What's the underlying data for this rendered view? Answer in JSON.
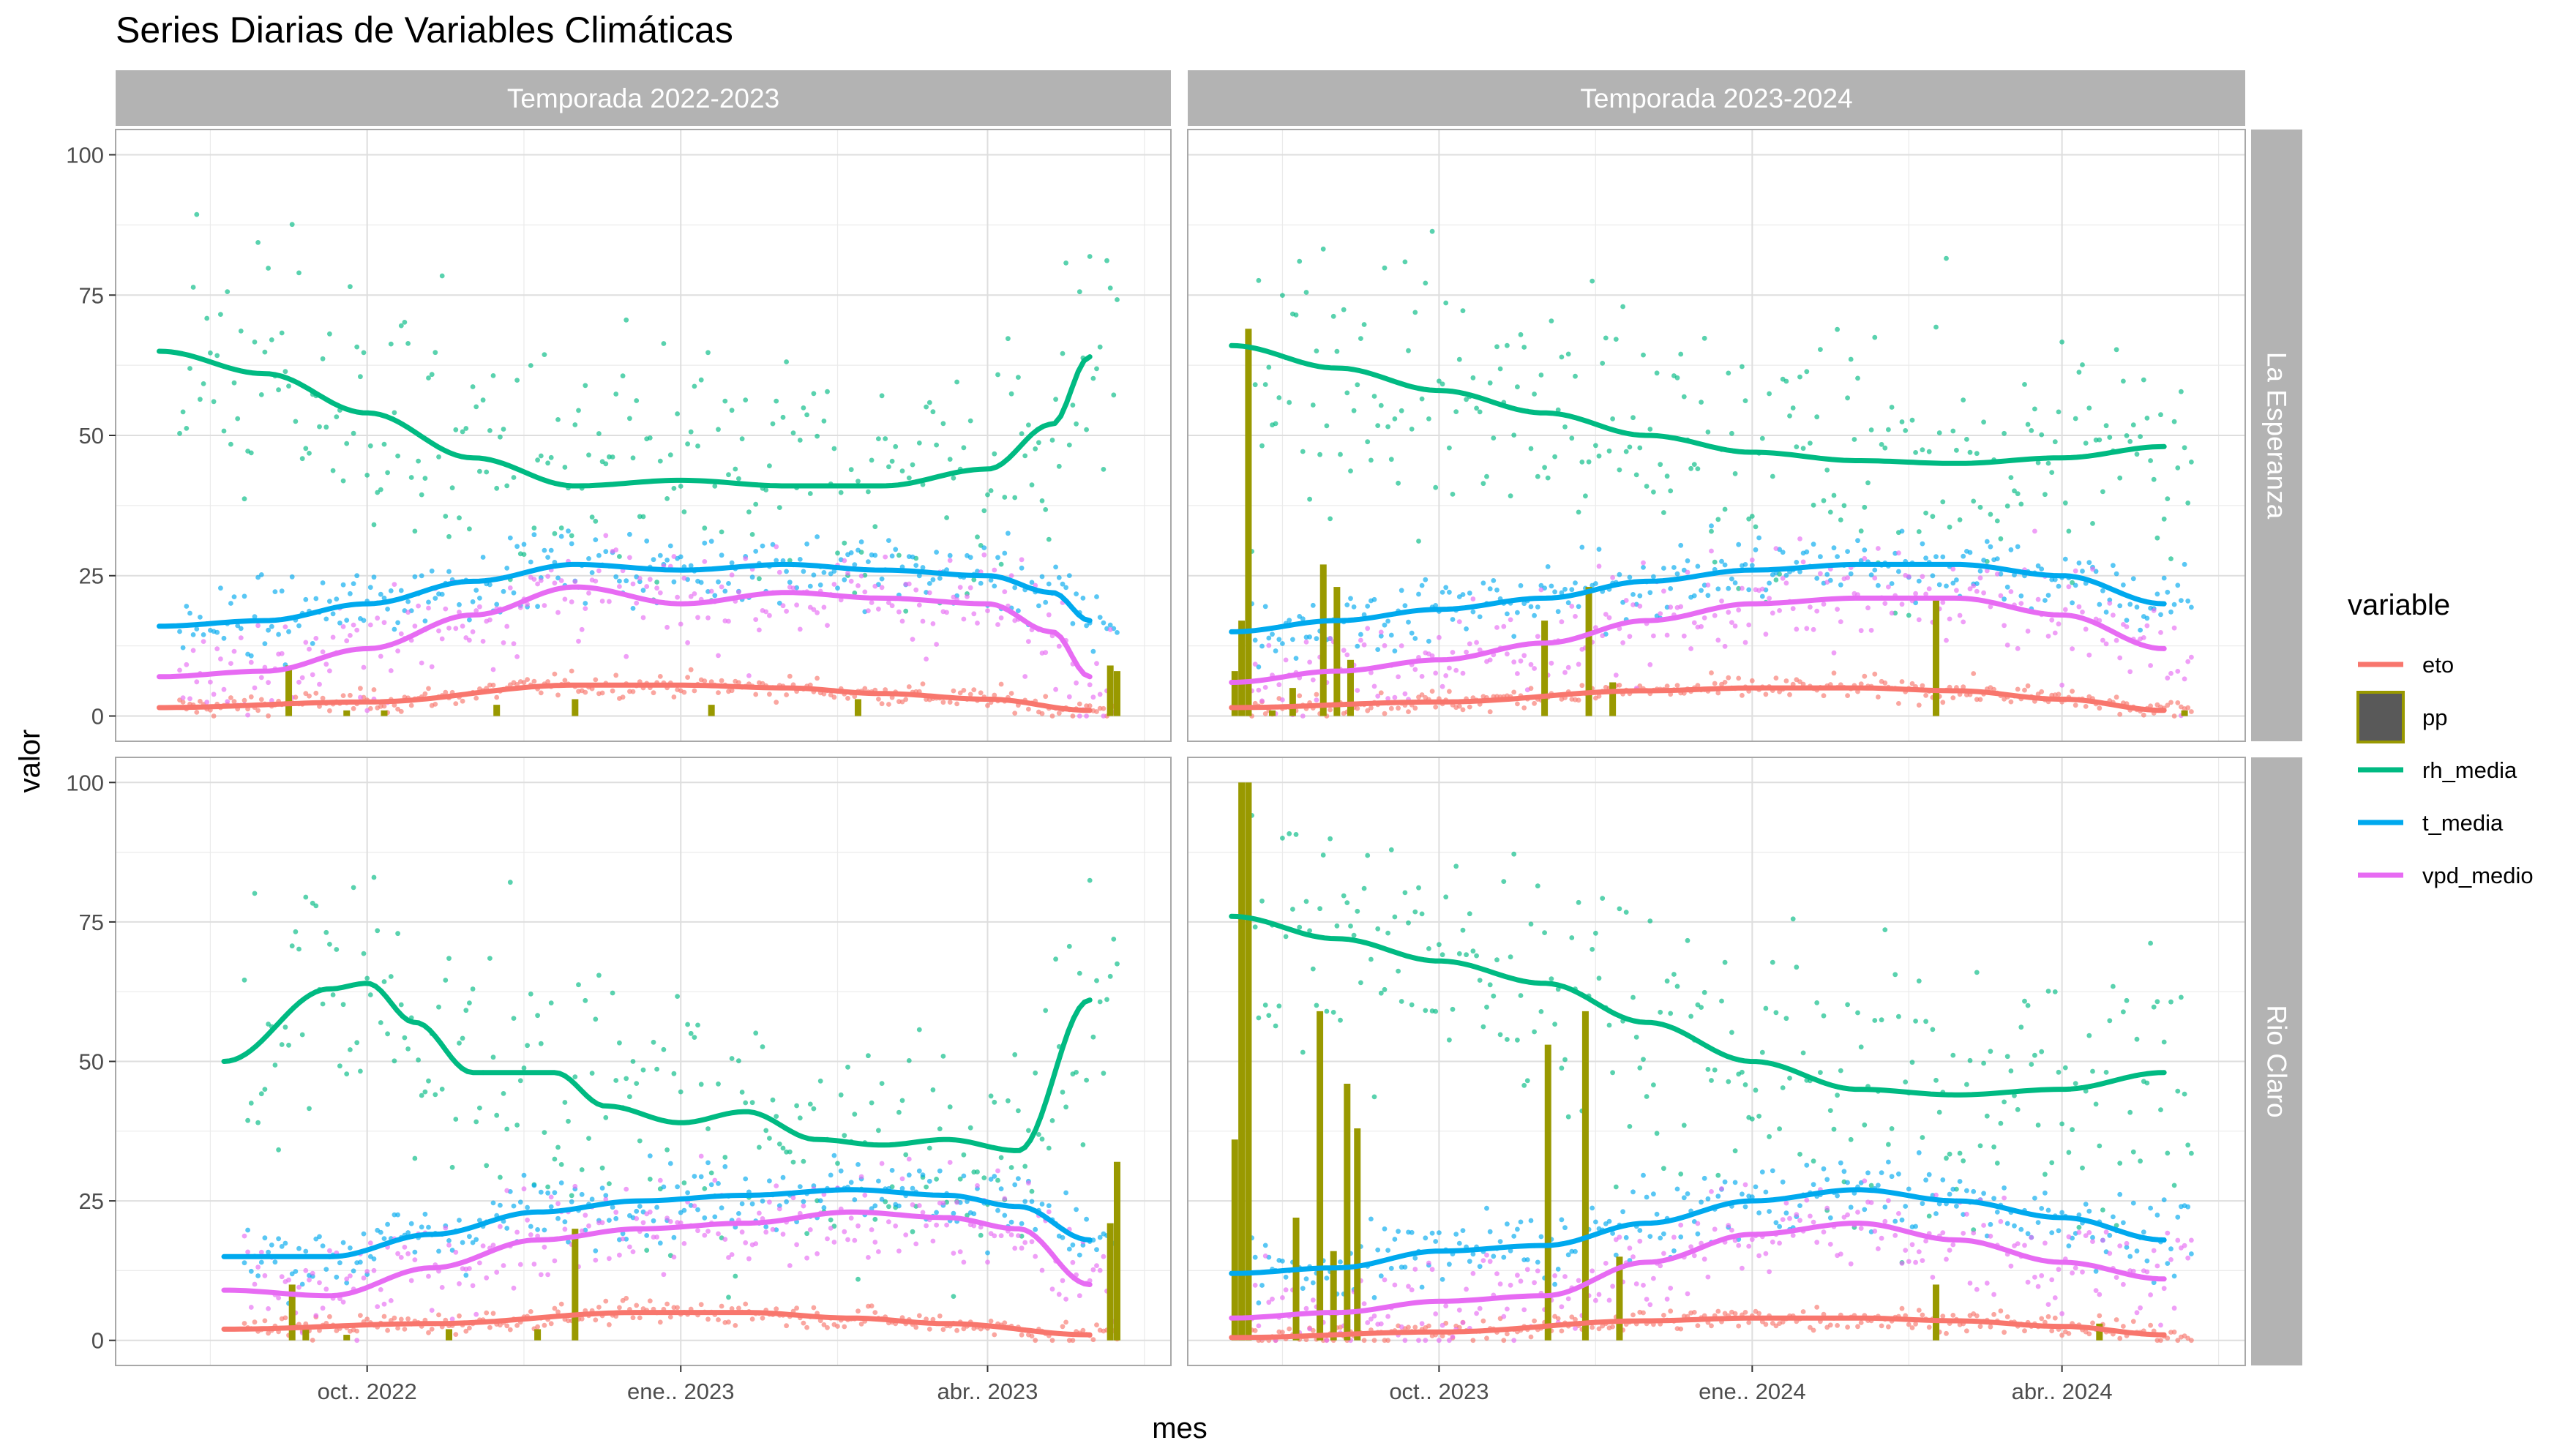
{
  "chart_data": {
    "type": "line",
    "title": "Series Diarias de Variables Climáticas",
    "xlabel": "mes",
    "ylabel": "valor",
    "ylim": [
      0,
      100
    ],
    "y_ticks": [
      0,
      25,
      50,
      75,
      100
    ],
    "grid": true,
    "legend": {
      "title": "variable",
      "placement": "right",
      "entries": [
        "eto",
        "pp",
        "rh_media",
        "t_media",
        "vpd_medio"
      ]
    },
    "colors": {
      "eto": "#F8766D",
      "pp": "#999900",
      "rh_media": "#00BA82",
      "t_media": "#00A9EE",
      "vpd_medio": "#E76BF3",
      "strip_bg": "#B3B3B3",
      "grid_major": "#EBEBEB",
      "panel_border": "#A8A8A8"
    },
    "col_strips": [
      "Temporada 2022-2023",
      "Temporada 2023-2024"
    ],
    "row_strips": [
      "La Esperanza",
      "Rio Claro"
    ],
    "x_ticks": [
      [
        "oct.. 2022",
        "ene.. 2023",
        "abr.. 2023"
      ],
      [
        "oct.. 2023",
        "ene.. 2024",
        "abr.. 2024"
      ]
    ],
    "panels": [
      {
        "col": 0,
        "row": 0,
        "x_start": "2022-08-01",
        "x_end": "2023-05-12",
        "tick_dates": [
          "2022-10-01",
          "2023-01-01",
          "2023-04-01"
        ],
        "series": [
          {
            "name": "rh_media",
            "x": [
              "2022-08-01",
              "2022-09-01",
              "2022-10-01",
              "2022-11-01",
              "2022-12-01",
              "2023-01-01",
              "2023-02-01",
              "2023-03-01",
              "2023-04-01",
              "2023-04-20",
              "2023-05-01"
            ],
            "values": [
              65,
              61,
              54,
              46,
              41,
              42,
              41,
              41,
              44,
              52,
              64
            ]
          },
          {
            "name": "t_media",
            "x": [
              "2022-08-01",
              "2022-09-01",
              "2022-10-01",
              "2022-11-01",
              "2022-12-01",
              "2023-01-01",
              "2023-02-01",
              "2023-03-01",
              "2023-04-01",
              "2023-04-20",
              "2023-05-01"
            ],
            "values": [
              16,
              17,
              20,
              24,
              27,
              26,
              27,
              26,
              25,
              22,
              17
            ]
          },
          {
            "name": "vpd_medio",
            "x": [
              "2022-08-01",
              "2022-09-01",
              "2022-10-01",
              "2022-11-01",
              "2022-12-01",
              "2023-01-01",
              "2023-02-01",
              "2023-03-01",
              "2023-04-01",
              "2023-04-20",
              "2023-05-01"
            ],
            "values": [
              7,
              8,
              12,
              18,
              23,
              20,
              22,
              21,
              20,
              15,
              7
            ]
          },
          {
            "name": "eto",
            "x": [
              "2022-08-01",
              "2022-10-01",
              "2022-12-01",
              "2023-01-01",
              "2023-02-01",
              "2023-03-01",
              "2023-04-01",
              "2023-05-01"
            ],
            "values": [
              1.5,
              2.5,
              5.5,
              5.5,
              5,
              4,
              3,
              1
            ]
          }
        ],
        "pp": [
          [
            "2022-09-08",
            9
          ],
          [
            "2022-09-25",
            1
          ],
          [
            "2022-10-06",
            1
          ],
          [
            "2022-11-08",
            2
          ],
          [
            "2022-12-01",
            3
          ],
          [
            "2023-01-10",
            2
          ],
          [
            "2023-02-22",
            3
          ],
          [
            "2023-05-07",
            9
          ],
          [
            "2023-05-09",
            8
          ]
        ]
      },
      {
        "col": 1,
        "row": 0,
        "x_start": "2023-08-01",
        "x_end": "2024-05-12",
        "tick_dates": [
          "2023-10-01",
          "2024-01-01",
          "2024-04-01"
        ],
        "series": [
          {
            "name": "rh_media",
            "x": [
              "2023-08-01",
              "2023-09-01",
              "2023-10-01",
              "2023-11-01",
              "2023-12-01",
              "2024-01-01",
              "2024-02-01",
              "2024-03-01",
              "2024-04-01",
              "2024-05-01"
            ],
            "values": [
              66,
              62,
              58,
              54,
              50,
              47,
              45.5,
              45,
              46,
              48
            ]
          },
          {
            "name": "t_media",
            "x": [
              "2023-08-01",
              "2023-09-01",
              "2023-10-01",
              "2023-11-01",
              "2023-12-01",
              "2024-01-01",
              "2024-02-01",
              "2024-03-01",
              "2024-04-01",
              "2024-05-01"
            ],
            "values": [
              15,
              17,
              19,
              21,
              24,
              26,
              27,
              27,
              25,
              20
            ]
          },
          {
            "name": "vpd_medio",
            "x": [
              "2023-08-01",
              "2023-09-01",
              "2023-10-01",
              "2023-11-01",
              "2023-12-01",
              "2024-01-01",
              "2024-02-01",
              "2024-03-01",
              "2024-04-01",
              "2024-05-01"
            ],
            "values": [
              6,
              8,
              10,
              13,
              17,
              20,
              21,
              21,
              18,
              12
            ]
          },
          {
            "name": "eto",
            "x": [
              "2023-08-01",
              "2023-10-01",
              "2023-12-01",
              "2024-01-01",
              "2024-02-01",
              "2024-03-01",
              "2024-04-01",
              "2024-05-01"
            ],
            "values": [
              1.5,
              2.5,
              4.5,
              5,
              5,
              4.5,
              3,
              1
            ]
          }
        ],
        "pp": [
          [
            "2023-08-02",
            8
          ],
          [
            "2023-08-04",
            17
          ],
          [
            "2023-08-06",
            69
          ],
          [
            "2023-08-13",
            1
          ],
          [
            "2023-08-19",
            5
          ],
          [
            "2023-08-28",
            27
          ],
          [
            "2023-09-01",
            23
          ],
          [
            "2023-09-05",
            10
          ],
          [
            "2023-11-01",
            17
          ],
          [
            "2023-11-14",
            23
          ],
          [
            "2023-11-21",
            6
          ],
          [
            "2024-02-24",
            21
          ],
          [
            "2024-05-07",
            1
          ]
        ]
      },
      {
        "col": 0,
        "row": 1,
        "x_start": "2022-08-01",
        "x_end": "2023-05-12",
        "tick_dates": [
          "2022-10-01",
          "2023-01-01",
          "2023-04-01"
        ],
        "series": [
          {
            "name": "rh_media",
            "x": [
              "2022-08-20",
              "2022-09-20",
              "2022-10-01",
              "2022-10-15",
              "2022-11-01",
              "2022-11-25",
              "2022-12-10",
              "2023-01-01",
              "2023-01-20",
              "2023-02-10",
              "2023-03-01",
              "2023-03-20",
              "2023-04-10",
              "2023-05-01"
            ],
            "values": [
              50,
              63,
              64,
              57,
              48,
              48,
              42,
              39,
              41,
              36,
              35,
              36,
              34,
              61
            ]
          },
          {
            "name": "t_media",
            "x": [
              "2022-08-20",
              "2022-09-20",
              "2022-10-20",
              "2022-11-20",
              "2022-12-20",
              "2023-01-20",
              "2023-02-20",
              "2023-03-20",
              "2023-04-10",
              "2023-05-01"
            ],
            "values": [
              15,
              15,
              19,
              23,
              25,
              26,
              27,
              26,
              24,
              18
            ]
          },
          {
            "name": "vpd_medio",
            "x": [
              "2022-08-20",
              "2022-09-20",
              "2022-10-20",
              "2022-11-20",
              "2022-12-20",
              "2023-01-20",
              "2023-02-20",
              "2023-03-20",
              "2023-04-10",
              "2023-05-01"
            ],
            "values": [
              9,
              8,
              13,
              18,
              20,
              21,
              23,
              22,
              20,
              10
            ]
          },
          {
            "name": "eto",
            "x": [
              "2022-08-20",
              "2022-10-20",
              "2022-12-20",
              "2023-01-20",
              "2023-02-20",
              "2023-03-20",
              "2023-05-01"
            ],
            "values": [
              2,
              3,
              5,
              5,
              4,
              3,
              1
            ]
          }
        ],
        "pp": [
          [
            "2022-09-09",
            10
          ],
          [
            "2022-09-13",
            2
          ],
          [
            "2022-09-25",
            1
          ],
          [
            "2022-10-25",
            2
          ],
          [
            "2022-11-20",
            2
          ],
          [
            "2022-12-01",
            20
          ],
          [
            "2023-05-07",
            21
          ],
          [
            "2023-05-09",
            32
          ]
        ]
      },
      {
        "col": 1,
        "row": 1,
        "x_start": "2023-08-01",
        "x_end": "2024-05-12",
        "tick_dates": [
          "2023-10-01",
          "2024-01-01",
          "2024-04-01"
        ],
        "series": [
          {
            "name": "rh_media",
            "x": [
              "2023-08-01",
              "2023-09-01",
              "2023-10-01",
              "2023-11-01",
              "2023-12-01",
              "2024-01-01",
              "2024-02-01",
              "2024-03-01",
              "2024-04-01",
              "2024-05-01"
            ],
            "values": [
              76,
              72,
              68,
              64,
              57,
              50,
              45,
              44,
              45,
              48
            ]
          },
          {
            "name": "t_media",
            "x": [
              "2023-08-01",
              "2023-09-01",
              "2023-10-01",
              "2023-11-01",
              "2023-12-01",
              "2024-01-01",
              "2024-02-01",
              "2024-03-01",
              "2024-04-01",
              "2024-05-01"
            ],
            "values": [
              12,
              13,
              16,
              17,
              21,
              25,
              27,
              25,
              22,
              18
            ]
          },
          {
            "name": "vpd_medio",
            "x": [
              "2023-08-01",
              "2023-09-01",
              "2023-10-01",
              "2023-11-01",
              "2023-12-01",
              "2024-01-01",
              "2024-02-01",
              "2024-03-01",
              "2024-04-01",
              "2024-05-01"
            ],
            "values": [
              4,
              5,
              7,
              8,
              14,
              19,
              21,
              18,
              14,
              11
            ]
          },
          {
            "name": "eto",
            "x": [
              "2023-08-01",
              "2023-10-01",
              "2023-12-01",
              "2024-01-01",
              "2024-02-01",
              "2024-03-01",
              "2024-04-01",
              "2024-05-01"
            ],
            "values": [
              0.5,
              1.5,
              3.5,
              4,
              4,
              3.5,
              2.5,
              1
            ]
          }
        ],
        "pp": [
          [
            "2023-08-02",
            36
          ],
          [
            "2023-08-04",
            100
          ],
          [
            "2023-08-06",
            100
          ],
          [
            "2023-08-20",
            22
          ],
          [
            "2023-08-27",
            59
          ],
          [
            "2023-08-31",
            16
          ],
          [
            "2023-09-04",
            46
          ],
          [
            "2023-09-07",
            38
          ],
          [
            "2023-11-02",
            53
          ],
          [
            "2023-11-13",
            59
          ],
          [
            "2023-11-23",
            15
          ],
          [
            "2024-02-24",
            10
          ],
          [
            "2024-04-12",
            3
          ]
        ]
      }
    ]
  }
}
